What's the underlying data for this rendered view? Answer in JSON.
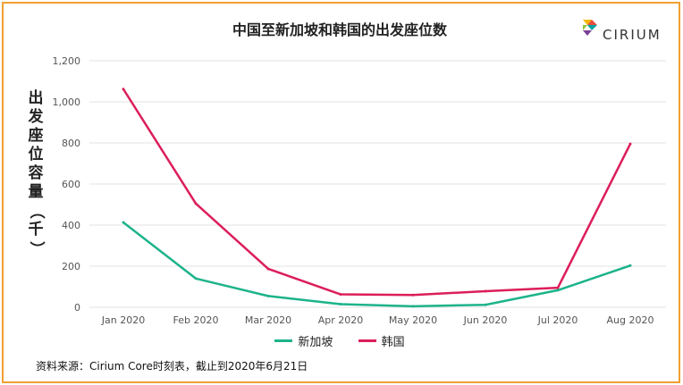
{
  "chart_data": {
    "type": "line",
    "title": "中国至新加坡和韩国的出发座位数",
    "ylabel_chars": [
      "出",
      "发",
      "座",
      "位",
      "容",
      "量",
      "（",
      "千",
      "）"
    ],
    "categories": [
      "Jan 2020",
      "Feb 2020",
      "Mar 2020",
      "Apr 2020",
      "May 2020",
      "Jun 2020",
      "Jul 2020",
      "Aug 2020"
    ],
    "y_ticks": [
      "0",
      "200",
      "400",
      "600",
      "800",
      "1,000",
      "1,200"
    ],
    "ylim": [
      0,
      1200
    ],
    "grid": true,
    "legend_position": "bottom",
    "series": [
      {
        "name": "新加坡",
        "color": "#1db38a",
        "values": [
          413,
          140,
          55,
          15,
          5,
          12,
          83,
          203
        ]
      },
      {
        "name": "韩国",
        "color": "#dc1e5a",
        "values": [
          1062,
          505,
          187,
          63,
          60,
          78,
          95,
          795
        ]
      }
    ]
  },
  "brand": {
    "logo_text": "CIRIUM"
  },
  "source_note": "资料来源：Cirium Core时刻表，截止到2020年6月21日"
}
